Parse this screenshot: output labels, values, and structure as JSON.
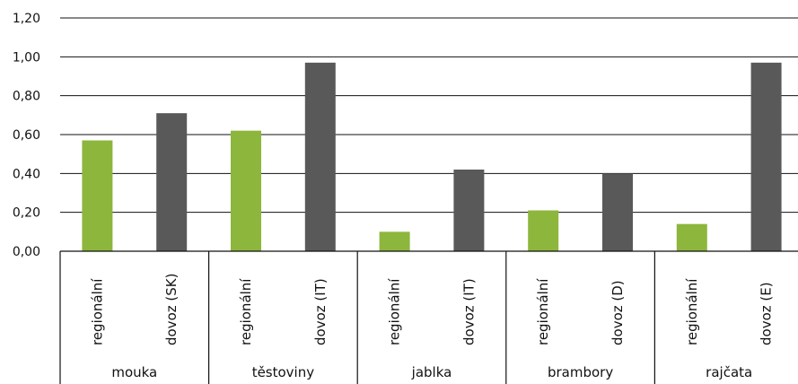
{
  "chart_data": {
    "type": "bar",
    "ylim": [
      0,
      1.2
    ],
    "yticks": [
      "0,00",
      "0,20",
      "0,40",
      "0,60",
      "0,80",
      "1,00",
      "1,20"
    ],
    "ytick_values": [
      0,
      0.2,
      0.4,
      0.6,
      0.8,
      1.0,
      1.2
    ],
    "grid": true,
    "legend": "none",
    "groups": [
      {
        "name": "mouka",
        "bars": [
          {
            "label": "regionální",
            "value": 0.57,
            "kind": "regional"
          },
          {
            "label": "dovoz (SK)",
            "value": 0.71,
            "kind": "import"
          }
        ]
      },
      {
        "name": "těstoviny",
        "bars": [
          {
            "label": "regionální",
            "value": 0.62,
            "kind": "regional"
          },
          {
            "label": "dovoz (IT)",
            "value": 0.97,
            "kind": "import"
          }
        ]
      },
      {
        "name": "jablka",
        "bars": [
          {
            "label": "regionální",
            "value": 0.1,
            "kind": "regional"
          },
          {
            "label": "dovoz (IT)",
            "value": 0.42,
            "kind": "import"
          }
        ]
      },
      {
        "name": "brambory",
        "bars": [
          {
            "label": "regionální",
            "value": 0.21,
            "kind": "regional"
          },
          {
            "label": "dovoz (D)",
            "value": 0.4,
            "kind": "import"
          }
        ]
      },
      {
        "name": "rajčata",
        "bars": [
          {
            "label": "regionální",
            "value": 0.14,
            "kind": "regional"
          },
          {
            "label": "dovoz (E)",
            "value": 0.97,
            "kind": "import"
          }
        ]
      }
    ],
    "colors": {
      "regional": "#8db63c",
      "import": "#595959"
    }
  }
}
